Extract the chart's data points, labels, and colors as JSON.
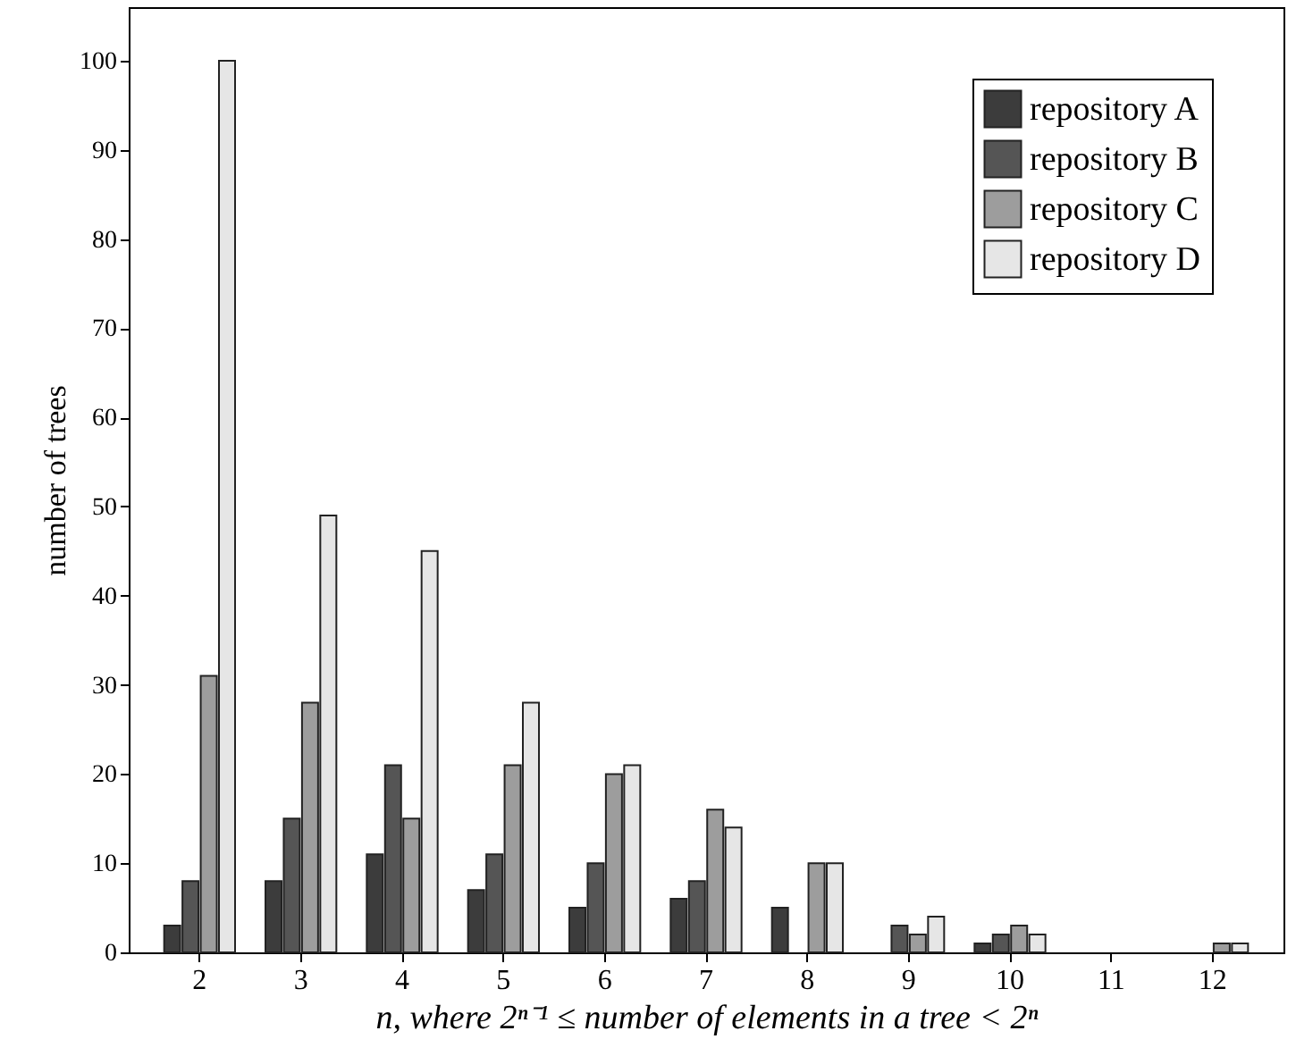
{
  "chart_data": {
    "type": "bar",
    "xlabel": "n, where 2ⁿ⁻¹ ≤ number of elements in a tree < 2ⁿ",
    "ylabel": "number of trees",
    "categories": [
      "2",
      "3",
      "4",
      "5",
      "6",
      "7",
      "8",
      "9",
      "10",
      "11",
      "12"
    ],
    "series": [
      {
        "name": "repository A",
        "color": "#3c3c3c",
        "values": [
          3,
          8,
          11,
          7,
          5,
          6,
          5,
          0,
          1,
          0,
          0
        ]
      },
      {
        "name": "repository B",
        "color": "#555555",
        "values": [
          8,
          15,
          21,
          11,
          10,
          8,
          0,
          3,
          2,
          0,
          0
        ]
      },
      {
        "name": "repository C",
        "color": "#9d9d9d",
        "values": [
          31,
          28,
          15,
          21,
          20,
          16,
          10,
          2,
          3,
          0,
          1
        ]
      },
      {
        "name": "repository D",
        "color": "#e6e6e6",
        "values": [
          100,
          49,
          45,
          28,
          21,
          14,
          10,
          4,
          2,
          0,
          1
        ]
      }
    ],
    "ylim": [
      0,
      106
    ],
    "yticks": [
      0,
      10,
      20,
      30,
      40,
      50,
      60,
      70,
      80,
      90,
      100
    ],
    "legend": "top right"
  }
}
